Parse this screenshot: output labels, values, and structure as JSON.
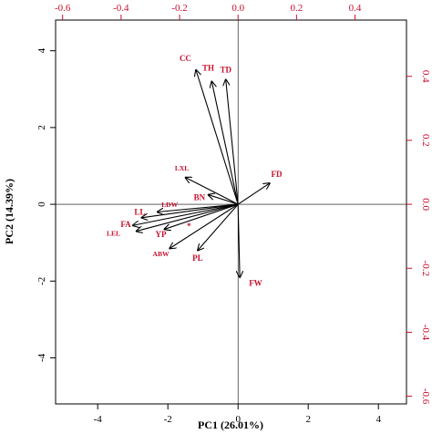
{
  "chart_data": {
    "type": "scatter",
    "subtype": "biplot",
    "xlabel": "PC1 (26.01%)",
    "ylabel": "PC2 (14.39%)",
    "xlim": [
      -5.2,
      4.8
    ],
    "ylim": [
      -5.2,
      4.8
    ],
    "x_ticks": [
      -4,
      -2,
      0,
      2,
      4
    ],
    "y_ticks": [
      -4,
      -2,
      0,
      2,
      4
    ],
    "loading_scale": {
      "xlim": [
        -0.624,
        0.576
      ],
      "ylim": [
        -0.624,
        0.576
      ]
    },
    "top_ticks": [
      "-0.6",
      "-0.4",
      "-0.2",
      "0.0",
      "0.2",
      "0.4"
    ],
    "top_tick_values": [
      -0.6,
      -0.4,
      -0.2,
      0.0,
      0.2,
      0.4
    ],
    "right_ticks": [
      "-0.6",
      "-0.4",
      "-0.2",
      "0.0",
      "0.2",
      "0.4"
    ],
    "right_tick_values": [
      -0.6,
      -0.4,
      -0.2,
      0.0,
      0.2,
      0.4
    ],
    "grid": false,
    "point_marker": "*",
    "point": {
      "x": -1.4,
      "y": -0.55
    },
    "label_color": "#c8102e",
    "arrow_color": "#000000",
    "vectors": [
      {
        "name": "CC",
        "x": -1.2,
        "y": 3.5,
        "label_x": -1.5,
        "label_y": 3.8
      },
      {
        "name": "TH",
        "x": -0.75,
        "y": 3.2,
        "label_x": -0.85,
        "label_y": 3.55
      },
      {
        "name": "TD",
        "x": -0.35,
        "y": 3.25,
        "label_x": -0.35,
        "label_y": 3.5
      },
      {
        "name": "FD",
        "x": 0.9,
        "y": 0.55,
        "label_x": 1.1,
        "label_y": 0.78
      },
      {
        "name": "LXL",
        "x": -1.5,
        "y": 0.7,
        "label_x": -1.6,
        "label_y": 0.95
      },
      {
        "name": "BN",
        "x": -0.85,
        "y": 0.25,
        "label_x": -1.1,
        "label_y": 0.18
      },
      {
        "name": "LDW",
        "x": -2.3,
        "y": -0.2,
        "label_x": -1.95,
        "label_y": 0.0
      },
      {
        "name": "LL",
        "x": -2.75,
        "y": -0.35,
        "label_x": -2.8,
        "label_y": -0.2
      },
      {
        "name": "FA",
        "x": -3.0,
        "y": -0.55,
        "label_x": -3.2,
        "label_y": -0.52
      },
      {
        "name": "LEL",
        "x": -2.9,
        "y": -0.7,
        "label_x": -3.55,
        "label_y": -0.75
      },
      {
        "name": "YP",
        "x": -2.1,
        "y": -0.65,
        "label_x": -2.2,
        "label_y": -0.78
      },
      {
        "name": "ABW",
        "x": -1.95,
        "y": -1.15,
        "label_x": -2.2,
        "label_y": -1.28
      },
      {
        "name": "PL",
        "x": -1.15,
        "y": -1.2,
        "label_x": -1.15,
        "label_y": -1.4
      },
      {
        "name": "FW",
        "x": 0.05,
        "y": -1.9,
        "label_x": 0.5,
        "label_y": -2.05
      }
    ]
  }
}
